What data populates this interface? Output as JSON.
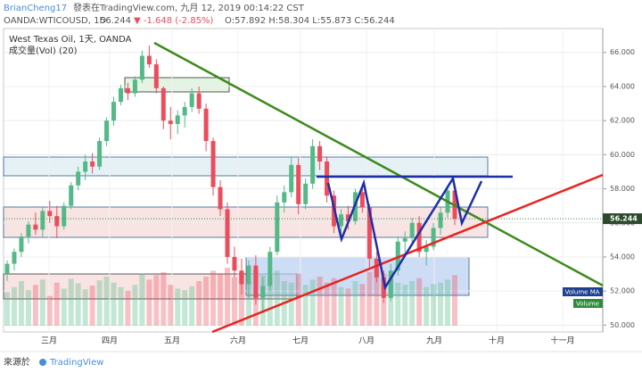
{
  "header": {
    "author": "BrianCheng17",
    "text": "發表在TradingView.com, 九月 12, 2019 00:14:22 CST",
    "symbol": "OANDA:WTICOUSD, 1D",
    "price": "56.244",
    "change": "▼ -1.648 (-2.85%)",
    "ohlc": "O:57.892 H:58.304 L:55.873 C:56.244"
  },
  "chart_data": {
    "type": "candlestick",
    "title": "West Texas Oil, 1天, OANDA",
    "subtitle": "成交量(Vol) (20)",
    "months": [
      "三月",
      "四月",
      "五月",
      "六月",
      "七月",
      "八月",
      "九月",
      "十月",
      "十一月"
    ],
    "open": [
      53.0,
      53.6,
      54.3,
      55.2,
      55.9,
      55.6,
      56.7,
      56.4,
      55.8,
      57.0,
      58.2,
      59.0,
      59.6,
      59.3,
      60.8,
      62.0,
      63.1,
      63.9,
      63.6,
      64.4,
      65.8,
      65.3,
      63.9,
      62.0,
      61.8,
      62.3,
      62.8,
      63.6,
      62.7,
      60.8,
      58.1,
      56.8,
      54.0,
      53.2,
      52.4,
      53.5,
      51.6,
      52.3,
      54.3,
      57.2,
      57.8,
      59.4,
      57.1,
      58.3,
      60.5,
      59.6,
      57.6,
      55.8,
      56.5,
      56.1,
      57.8,
      56.9,
      53.9,
      52.8,
      51.6,
      53.2,
      54.9,
      55.1,
      56.0,
      54.3,
      54.6,
      55.7,
      56.6,
      57.892
    ],
    "high": [
      53.8,
      54.5,
      55.4,
      56.1,
      56.6,
      56.9,
      57.3,
      57.0,
      57.2,
      58.4,
      59.3,
      60.0,
      60.1,
      61.0,
      62.2,
      63.4,
      64.1,
      64.2,
      64.6,
      66.1,
      66.4,
      65.6,
      64.0,
      62.8,
      62.6,
      63.1,
      63.9,
      64.0,
      63.0,
      61.0,
      58.5,
      57.2,
      54.6,
      53.9,
      53.8,
      54.1,
      52.8,
      54.6,
      57.6,
      58.2,
      59.9,
      59.8,
      58.6,
      60.9,
      60.8,
      59.9,
      57.9,
      56.8,
      57.0,
      58.0,
      58.3,
      57.1,
      54.3,
      53.2,
      53.6,
      55.2,
      55.5,
      56.3,
      56.4,
      55.0,
      56.0,
      56.9,
      58.1,
      58.304
    ],
    "low": [
      52.6,
      53.2,
      54.0,
      54.8,
      55.3,
      55.2,
      56.0,
      55.1,
      55.6,
      56.8,
      57.9,
      58.5,
      58.9,
      59.1,
      60.5,
      61.7,
      62.9,
      63.2,
      63.4,
      64.2,
      65.1,
      63.6,
      61.5,
      60.9,
      61.2,
      61.6,
      62.5,
      62.4,
      60.2,
      57.6,
      56.4,
      53.6,
      52.8,
      51.8,
      51.6,
      51.2,
      50.7,
      52.0,
      54.1,
      56.6,
      57.5,
      56.5,
      56.8,
      58.0,
      59.1,
      57.2,
      55.4,
      55.2,
      55.6,
      55.9,
      56.6,
      53.4,
      52.5,
      51.3,
      51.4,
      52.9,
      54.2,
      54.8,
      54.0,
      53.5,
      54.4,
      55.3,
      56.3,
      55.873
    ],
    "close": [
      53.6,
      54.3,
      55.2,
      55.9,
      55.6,
      56.7,
      56.4,
      55.8,
      57.0,
      58.2,
      59.0,
      59.6,
      59.3,
      60.8,
      62.0,
      63.1,
      63.9,
      63.6,
      64.4,
      65.8,
      65.3,
      63.9,
      62.0,
      61.8,
      62.3,
      62.8,
      63.6,
      62.7,
      60.8,
      58.1,
      56.8,
      54.0,
      53.2,
      52.4,
      53.5,
      51.6,
      52.3,
      54.3,
      57.2,
      57.8,
      59.4,
      57.1,
      58.3,
      60.5,
      59.6,
      57.6,
      55.8,
      56.5,
      56.1,
      57.8,
      56.9,
      53.9,
      52.8,
      51.6,
      53.2,
      54.9,
      55.1,
      56.0,
      54.3,
      54.6,
      55.7,
      56.6,
      57.9,
      56.244
    ],
    "volume": [
      45,
      52,
      60,
      48,
      55,
      62,
      40,
      58,
      50,
      63,
      57,
      49,
      54,
      61,
      66,
      58,
      52,
      47,
      55,
      70,
      62,
      68,
      72,
      55,
      50,
      48,
      53,
      60,
      66,
      74,
      70,
      78,
      65,
      72,
      60,
      76,
      68,
      64,
      74,
      60,
      58,
      70,
      55,
      62,
      66,
      58,
      64,
      52,
      50,
      60,
      56,
      72,
      75,
      70,
      62,
      58,
      55,
      60,
      64,
      52,
      56,
      58,
      62,
      68
    ],
    "vlim": [
      0,
      120
    ],
    "ylim": [
      49.6,
      67.4
    ],
    "yticks": [
      50.0,
      52.0,
      54.0,
      56.0,
      58.0,
      60.0,
      62.0,
      64.0,
      66.0
    ],
    "up_color": "#53b987",
    "down_color": "#eb4d5c",
    "legend": [
      "Volume MA",
      "Volume"
    ]
  },
  "footer": {
    "source": "來源於",
    "brand": "TradingView"
  }
}
